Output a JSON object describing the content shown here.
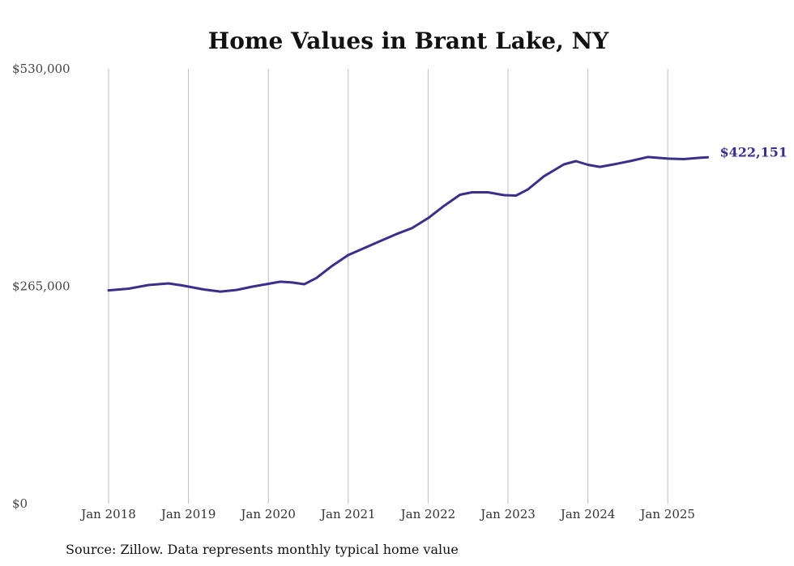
{
  "chart_data": {
    "type": "line",
    "title": "Home Values in Brant Lake, NY",
    "xlabel": "",
    "ylabel": "",
    "ylim": [
      0,
      530000
    ],
    "y_ticks": [
      "$0",
      "$265,000",
      "$530,000"
    ],
    "y_tick_values": [
      0,
      265000,
      530000
    ],
    "x_ticks": [
      "Jan 2018",
      "Jan 2019",
      "Jan 2020",
      "Jan 2021",
      "Jan 2022",
      "Jan 2023",
      "Jan 2024",
      "Jan 2025"
    ],
    "x_tick_values": [
      2018.0,
      2019.0,
      2020.0,
      2021.0,
      2022.0,
      2023.0,
      2024.0,
      2025.0
    ],
    "grid": "vertical",
    "line_color": "#3b2f8c",
    "end_label": "$422,151",
    "series": [
      {
        "values": [
          [
            2018.0,
            260000
          ],
          [
            2018.25,
            262000
          ],
          [
            2018.5,
            266500
          ],
          [
            2018.75,
            268500
          ],
          [
            2018.92,
            266000
          ],
          [
            2019.2,
            261000
          ],
          [
            2019.4,
            258500
          ],
          [
            2019.6,
            260500
          ],
          [
            2019.8,
            264500
          ],
          [
            2020.0,
            268000
          ],
          [
            2020.15,
            270500
          ],
          [
            2020.3,
            269500
          ],
          [
            2020.45,
            267500
          ],
          [
            2020.6,
            275000
          ],
          [
            2020.8,
            290000
          ],
          [
            2021.0,
            303000
          ],
          [
            2021.2,
            311500
          ],
          [
            2021.4,
            320000
          ],
          [
            2021.6,
            328500
          ],
          [
            2021.8,
            336000
          ],
          [
            2022.0,
            348000
          ],
          [
            2022.2,
            363000
          ],
          [
            2022.4,
            376500
          ],
          [
            2022.55,
            379500
          ],
          [
            2022.75,
            379500
          ],
          [
            2022.95,
            376000
          ],
          [
            2023.1,
            375500
          ],
          [
            2023.25,
            383000
          ],
          [
            2023.45,
            399000
          ],
          [
            2023.7,
            413500
          ],
          [
            2023.85,
            417500
          ],
          [
            2024.0,
            413000
          ],
          [
            2024.15,
            410500
          ],
          [
            2024.35,
            414000
          ],
          [
            2024.55,
            418000
          ],
          [
            2024.75,
            422500
          ],
          [
            2025.0,
            420500
          ],
          [
            2025.2,
            420000
          ],
          [
            2025.4,
            421500
          ],
          [
            2025.5,
            422151
          ]
        ]
      }
    ]
  },
  "source_note": "Source: Zillow. Data represents monthly typical home value"
}
